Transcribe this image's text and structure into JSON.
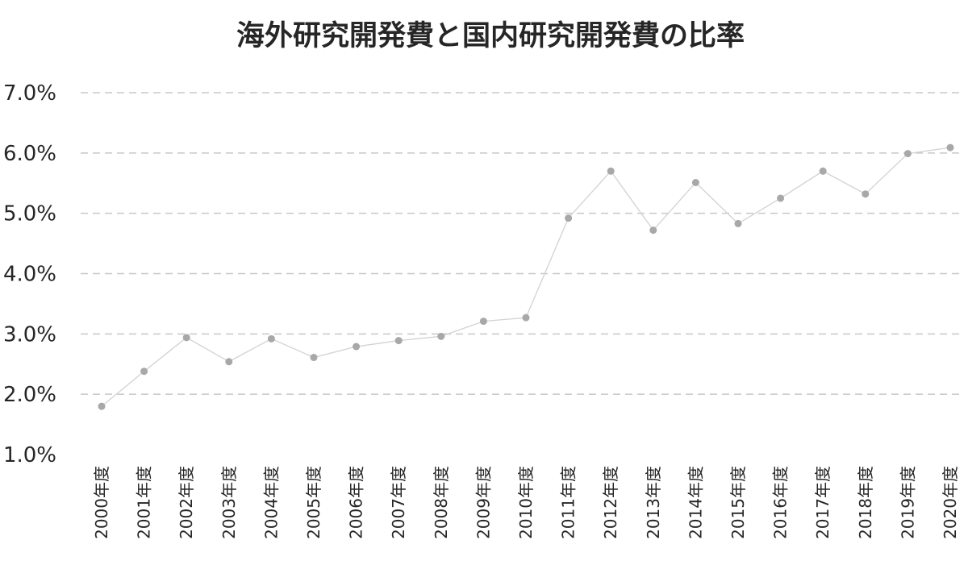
{
  "chart_data": {
    "type": "line",
    "title": "海外研究開発費と国内研究開発費の比率",
    "xlabel": "",
    "ylabel": "",
    "categories": [
      "2000年度",
      "2001年度",
      "2002年度",
      "2003年度",
      "2004年度",
      "2005年度",
      "2006年度",
      "2007年度",
      "2008年度",
      "2009年度",
      "2010年度",
      "2011年度",
      "2012年度",
      "2013年度",
      "2014年度",
      "2015年度",
      "2016年度",
      "2017年度",
      "2018年度",
      "2019年度",
      "2020年度"
    ],
    "series": [
      {
        "values": [
          1.8,
          2.38,
          2.94,
          2.54,
          2.92,
          2.61,
          2.79,
          2.89,
          2.96,
          3.21,
          3.27,
          4.92,
          5.7,
          4.72,
          5.51,
          4.83,
          5.25,
          5.7,
          5.32,
          5.99,
          6.09
        ]
      }
    ],
    "ylim": [
      1.0,
      7.0
    ],
    "yticks": [
      "1.0%",
      "2.0%",
      "3.0%",
      "4.0%",
      "5.0%",
      "6.0%",
      "7.0%"
    ],
    "grid": true,
    "legend": "none",
    "colors": {
      "line": "#d2d2d2",
      "marker": "#a8a8a8",
      "grid": "#c8c8c8",
      "text": "#262626"
    }
  }
}
